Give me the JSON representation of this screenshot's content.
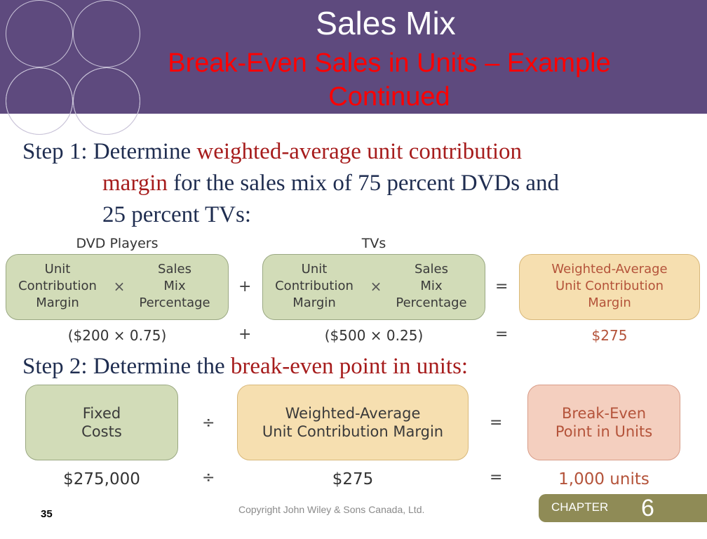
{
  "header": {
    "title": "Sales Mix",
    "subtitle_line1": "Break-Even Sales in Units – Example",
    "subtitle_line2": "Continued"
  },
  "step1": {
    "prefix": "Step 1: Determine ",
    "highlight": "weighted-average unit contribution",
    "line2_highlight": "margin",
    "line2_rest": " for the sales mix of 75 percent DVDs and",
    "line3": "25 percent TVs:"
  },
  "formula1": {
    "group1_label": "DVD Players",
    "group2_label": "TVs",
    "box1_left": [
      "Unit",
      "Contribution",
      "Margin"
    ],
    "box1_right": [
      "Sales",
      "Mix",
      "Percentage"
    ],
    "box2_left": [
      "Unit",
      "Contribution",
      "Margin"
    ],
    "box2_right": [
      "Sales",
      "Mix",
      "Percentage"
    ],
    "result_box": [
      "Weighted-Average",
      "Unit Contribution",
      "Margin"
    ],
    "times": "×",
    "plus": "+",
    "equals": "=",
    "value1": "($200 × 0.75)",
    "value2": "($500 × 0.25)",
    "result_value": "$275"
  },
  "step2": {
    "prefix": "Step 2: Determine the ",
    "highlight": "break-even point in units:"
  },
  "formula2": {
    "box1": [
      "Fixed",
      "Costs"
    ],
    "box2": [
      "Weighted-Average",
      "Unit Contribution Margin"
    ],
    "box3": [
      "Break-Even",
      "Point in Units"
    ],
    "divide": "÷",
    "equals": "=",
    "value1": "$275,000",
    "value2": "$275",
    "result_value": "1,000 units"
  },
  "footer": {
    "page_number": "35",
    "copyright": "Copyright John Wiley & Sons Canada, Ltd.",
    "chapter_label": "CHAPTER",
    "chapter_number": "6"
  },
  "colors": {
    "header_bg": "#5e4a7e",
    "subtitle_red": "#ff0000",
    "highlight_red": "#a61c1c",
    "green_box": "#d2dcb8",
    "tan_box": "#f6dfb0",
    "pink_box": "#f4cfbf",
    "chapter_tab": "#8f8b56"
  }
}
